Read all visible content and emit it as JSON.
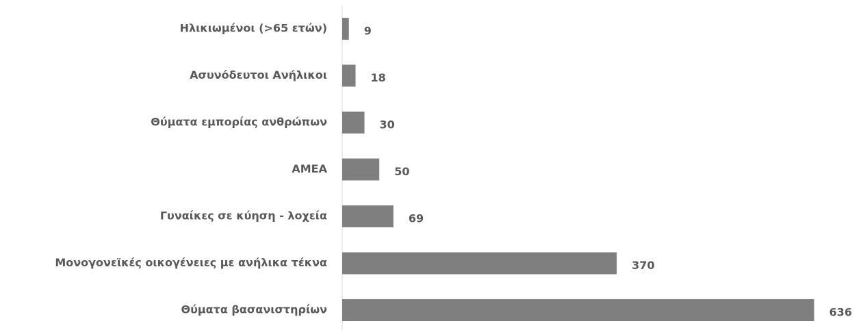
{
  "chart_data": {
    "type": "hbar",
    "categories": [
      "Ηλικιωμένοι (>65 ετών)",
      "Ασυνόδευτοι Ανήλικοι",
      "Θύματα εμπορίας ανθρώπων",
      "ΑΜΕΑ",
      "Γυναίκες σε κύηση - λοχεία",
      "Μονογονεϊκές οικογένειες με ανήλικα τέκνα",
      "Θύματα βασανιστηρίων"
    ],
    "values": [
      9,
      18,
      30,
      50,
      69,
      370,
      636
    ],
    "color": "#7f7f7f",
    "xlim": [
      0,
      700
    ]
  }
}
